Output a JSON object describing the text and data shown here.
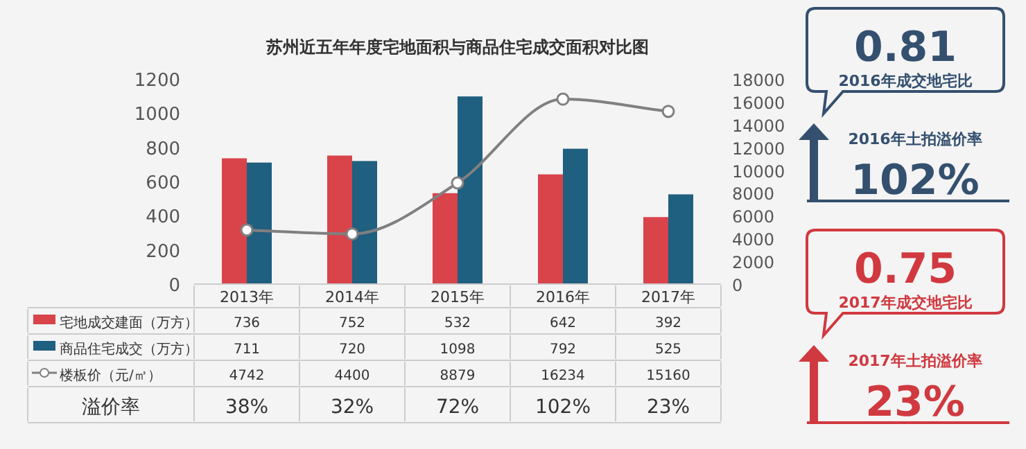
{
  "chart_data": [
    {
      "type": "bar",
      "title": "苏州近五年年度宅地面积与商品住宅成交面积对比图",
      "categories": [
        "2013年",
        "2014年",
        "2015年",
        "2016年",
        "2017年"
      ],
      "series": [
        {
          "name": "宅地成交建面（万方）",
          "color": "#d9434a",
          "values": [
            736,
            752,
            532,
            642,
            392
          ]
        },
        {
          "name": "商品住宅成交（万方）",
          "color": "#1f5f7f",
          "values": [
            711,
            720,
            1098,
            792,
            525
          ]
        },
        {
          "name": "楼板价（元/㎡）",
          "type": "line",
          "axis": "y2",
          "color": "#808080",
          "marker": "circle",
          "values": [
            4742,
            4400,
            8879,
            16234,
            15160
          ]
        }
      ],
      "ylim": [
        0,
        1200
      ],
      "yticks": [
        0,
        200,
        400,
        600,
        800,
        1000,
        1200
      ],
      "y2lim": [
        0,
        18000
      ],
      "y2ticks": [
        0,
        2000,
        4000,
        6000,
        8000,
        10000,
        12000,
        14000,
        16000,
        18000
      ],
      "grid": false,
      "legend": "bottom",
      "data_labels": true,
      "annotations": [
        "溢价率",
        "38%",
        "32%",
        "72%",
        "102%",
        "23%"
      ]
    },
    {
      "type": "other",
      "colors": [
        "#34506f",
        "#d0393f"
      ],
      "annotations": [
        "0.81",
        "2016年成交地宅比",
        "2016年土拍溢价率",
        "102%",
        "0.75",
        "2017年成交地宅比",
        "2017年土拍溢价率",
        "23%"
      ]
    }
  ]
}
